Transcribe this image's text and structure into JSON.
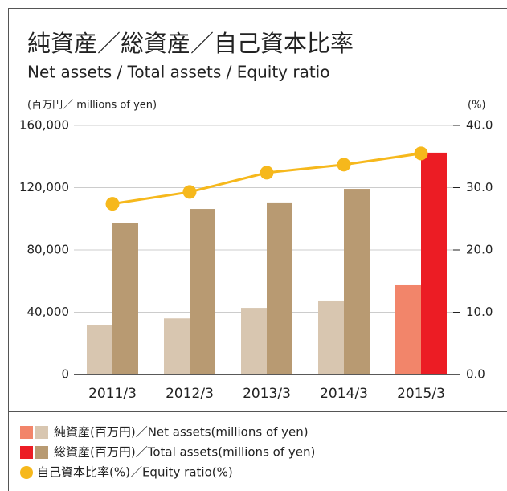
{
  "chart_data": {
    "type": "bar_line",
    "title": "純資産／総資産／自己資本比率",
    "subtitle": "Net assets / Total assets / Equity ratio",
    "y_label": "(百万円／ millions of yen)",
    "y2_label": "(%)",
    "categories": [
      "2011/3",
      "2012/3",
      "2013/3",
      "2014/3",
      "2015/3"
    ],
    "series": [
      {
        "name": "純資産(百万円)／Net assets(millions of yen)",
        "type": "bar",
        "color": "#d8c6b0",
        "colors": [
          "#d8c6b0",
          "#d8c6b0",
          "#d8c6b0",
          "#d8c6b0",
          "#f2856a"
        ],
        "values": [
          32000,
          36000,
          42800,
          47500,
          57300
        ]
      },
      {
        "name": "総資産(百万円)／Total assets(millions of yen)",
        "type": "bar",
        "color": "#b89a72",
        "colors": [
          "#b89a72",
          "#b89a72",
          "#b89a72",
          "#b89a72",
          "#ec1c24"
        ],
        "values": [
          97500,
          106300,
          110500,
          119200,
          142500
        ]
      },
      {
        "name": "自己資本比率(%)／Equity ratio(%)",
        "type": "line",
        "axis": "y2",
        "color": "#f6b81c",
        "values": [
          27.4,
          29.3,
          32.4,
          33.7,
          35.5
        ]
      }
    ],
    "ylim": [
      0,
      160000
    ],
    "yticks": [
      0,
      {
        "value": 40000,
        "label": "40,000"
      },
      {
        "value": 80000,
        "label": "80,000"
      },
      {
        "value": 120000,
        "label": "120,000"
      },
      {
        "value": 160000,
        "label": "160,000"
      }
    ],
    "y2lim": [
      0,
      40
    ],
    "y2ticks": [
      {
        "value": 0,
        "label": "0.0"
      },
      {
        "value": 10,
        "label": "10.0"
      },
      {
        "value": 20,
        "label": "20.0"
      },
      {
        "value": 30,
        "label": "30.0"
      },
      {
        "value": 40,
        "label": "40.0"
      }
    ],
    "grid": true
  }
}
